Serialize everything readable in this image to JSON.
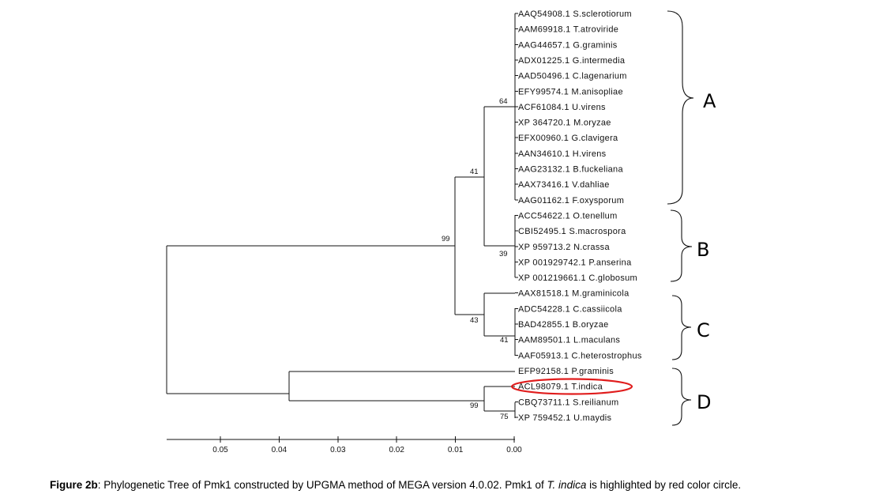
{
  "figure": {
    "leaves": [
      "AAQ54908.1 S.sclerotiorum",
      "AAM69918.1 T.atroviride",
      "AAG44657.1 G.graminis",
      "ADX01225.1 G.intermedia",
      "AAD50496.1 C.lagenarium",
      "EFY99574.1 M.anisopliae",
      "ACF61084.1 U.virens",
      "XP 364720.1 M.oryzae",
      "EFX00960.1 G.clavigera",
      "AAN34610.1 H.virens",
      "AAG23132.1 B.fuckeliana",
      "AAX73416.1 V.dahliae",
      "AAG01162.1 F.oxysporum",
      "ACC54622.1 O.tenellum",
      "CBI52495.1 S.macrospora",
      "XP 959713.2 N.crassa",
      "XP 001929742.1 P.anserina",
      "XP 001219661.1 C.globosum",
      "AAX81518.1 M.graminicola",
      "ADC54228.1 C.cassiicola",
      "BAD42855.1 B.oryzae",
      "AAM89501.1 L.maculans",
      "AAF05913.1 C.heterostrophus",
      "EFP92158.1 P.graminis",
      "ACL98079.1 T.indica",
      "CBQ73711.1 S.reilianum",
      "XP 759452.1 U.maydis"
    ],
    "highlighted_leaf": "ACL98079.1 T.indica",
    "highlight_color": "#e01c1c",
    "bootstrap_values": [
      "64",
      "41",
      "99",
      "39",
      "43",
      "41",
      "99",
      "75"
    ],
    "clades": [
      "A",
      "B",
      "C",
      "D"
    ],
    "scale_ticks": [
      "0.05",
      "0.04",
      "0.03",
      "0.02",
      "0.01",
      "0.00"
    ]
  },
  "caption": {
    "label": "Figure 2b",
    "text_1": ": Phylogenetic Tree of Pmk1 constructed by UPGMA method of MEGA version 4.0.02. Pmk1 of ",
    "species": "T. indica",
    "text_2": " is highlighted by red color circle."
  }
}
